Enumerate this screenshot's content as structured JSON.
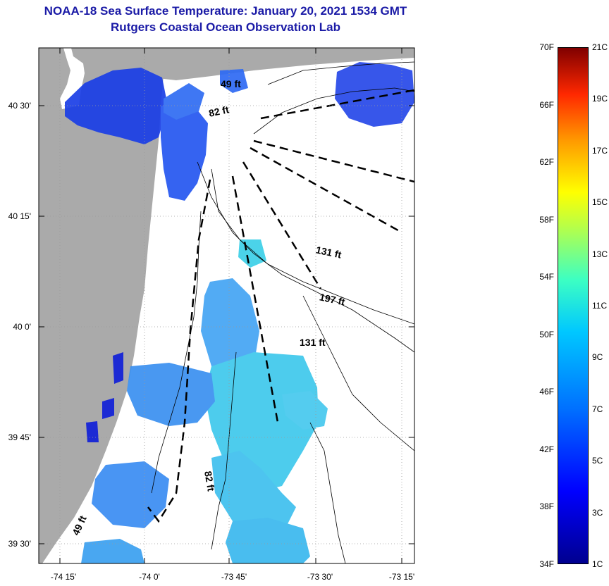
{
  "title": {
    "line1": "NOAA-18 Sea Surface Temperature:  January 20, 2021 1534 GMT",
    "line2": "Rutgers Coastal Ocean Observation Lab"
  },
  "map": {
    "lat_labels": [
      "40 30'",
      "40 15'",
      "40 0'",
      "39 45'",
      "39 30'"
    ],
    "lon_labels": [
      "-74 15'",
      "-74 0'",
      "-73 45'",
      "-73 30'",
      "-73 15'"
    ],
    "depth_labels": {
      "d1": "49 ft",
      "d2": "82 ft",
      "d3": "131 ft",
      "d4": "197 ft",
      "d5": "131 ft",
      "d6": "82 ft",
      "d7": "49 ft"
    },
    "colors": {
      "land": "#aaaaaa",
      "frame": "#000000"
    }
  },
  "colorbar": {
    "f_labels": [
      "70F",
      "66F",
      "62F",
      "58F",
      "54F",
      "50F",
      "46F",
      "42F",
      "38F",
      "34F"
    ],
    "c_labels": [
      "21C",
      "19C",
      "17C",
      "15C",
      "13C",
      "11C",
      "9C",
      "7C",
      "5C",
      "3C",
      "1C"
    ]
  }
}
